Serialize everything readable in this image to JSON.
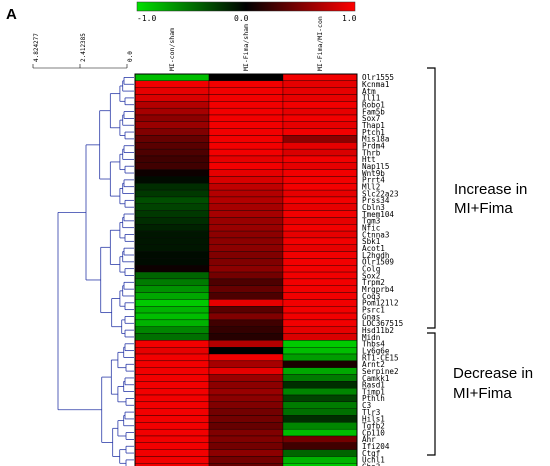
{
  "panel_label": "A",
  "color_scale": {
    "min_label": "-1.0",
    "mid_label": "0.0",
    "max_label": "1.0",
    "low_color": "#00e000",
    "mid_color": "#000000",
    "high_color": "#ff0000"
  },
  "dendrogram_scale": [
    "4.824277",
    "2.412385",
    "0.0"
  ],
  "groups": [
    {
      "line1": "Increase in",
      "line2": "MI+Fima"
    },
    {
      "line1": "Decrease in",
      "line2": "MI+Fima"
    }
  ],
  "chart_data": {
    "type": "heatmap",
    "title": "",
    "columns": [
      "MI-con/sham",
      "MI-Fima/sham",
      "MI-Fima/MI-con"
    ],
    "value_range": [
      -1.0,
      1.0
    ],
    "rows": [
      "Olr1555",
      "Kcnma1",
      "Atm",
      "Il11",
      "Robo1",
      "Fam5b",
      "Sox7",
      "Thap1",
      "Ptch1",
      "Mis18a",
      "Prdm4",
      "Thrb",
      "Htt",
      "Nap1l5",
      "Wnt9b",
      "Prrt4",
      "Mll2",
      "Slc22a23",
      "Prss34",
      "Cbln3",
      "Tmem104",
      "Tgm3",
      "Nfic",
      "Ctnna3",
      "Sbk1",
      "Acot1",
      "L2hgdh",
      "Olr1509",
      "Colq",
      "Sox2",
      "Trpm2",
      "Mrgprb4",
      "Coq3",
      "Pom121l2",
      "Psrc1",
      "Gnas",
      "LOC367515",
      "Hsd11b2",
      "Midn",
      "Thbs4",
      "Ly6g6e",
      "RT1-CE15",
      "Arnt2",
      "Serpine2",
      "Camkk1",
      "Rasd1",
      "Timp1",
      "Pthlh",
      "C3",
      "Tlr3",
      "Hils1",
      "Tgfb2",
      "Cp110",
      "Ahr",
      "Ifi204",
      "Ctgf",
      "Uchl1",
      "Gba3"
    ],
    "values": [
      [
        -0.85,
        0.0,
        0.95
      ],
      [
        0.95,
        0.95,
        0.9
      ],
      [
        0.9,
        0.95,
        0.9
      ],
      [
        0.85,
        0.95,
        0.9
      ],
      [
        0.7,
        0.95,
        0.95
      ],
      [
        0.65,
        0.95,
        0.9
      ],
      [
        0.55,
        0.95,
        0.95
      ],
      [
        0.6,
        0.95,
        0.9
      ],
      [
        0.5,
        0.95,
        0.95
      ],
      [
        0.4,
        0.95,
        0.55
      ],
      [
        0.35,
        0.95,
        0.9
      ],
      [
        0.3,
        0.95,
        0.85
      ],
      [
        0.25,
        0.9,
        0.95
      ],
      [
        0.25,
        0.95,
        0.9
      ],
      [
        0.05,
        0.9,
        0.95
      ],
      [
        -0.05,
        0.85,
        0.95
      ],
      [
        -0.2,
        0.75,
        0.95
      ],
      [
        -0.25,
        0.7,
        0.9
      ],
      [
        -0.35,
        0.7,
        0.95
      ],
      [
        -0.3,
        0.65,
        0.9
      ],
      [
        -0.25,
        0.65,
        0.95
      ],
      [
        -0.2,
        0.6,
        0.9
      ],
      [
        -0.15,
        0.6,
        0.95
      ],
      [
        -0.1,
        0.55,
        0.9
      ],
      [
        -0.1,
        0.55,
        0.95
      ],
      [
        -0.1,
        0.55,
        0.9
      ],
      [
        -0.05,
        0.5,
        0.95
      ],
      [
        -0.05,
        0.5,
        0.95
      ],
      [
        0.05,
        0.55,
        0.95
      ],
      [
        -0.45,
        0.45,
        0.95
      ],
      [
        -0.55,
        0.3,
        0.95
      ],
      [
        -0.65,
        0.4,
        0.95
      ],
      [
        -0.75,
        0.3,
        0.95
      ],
      [
        -0.9,
        0.9,
        0.95
      ],
      [
        -0.8,
        0.35,
        0.95
      ],
      [
        -0.85,
        0.5,
        0.95
      ],
      [
        -0.8,
        0.25,
        0.95
      ],
      [
        -0.6,
        0.2,
        0.9
      ],
      [
        -0.5,
        0.15,
        0.85
      ],
      [
        0.95,
        0.7,
        -0.9
      ],
      [
        0.9,
        0.0,
        -0.85
      ],
      [
        0.95,
        0.95,
        -0.7
      ],
      [
        0.95,
        0.65,
        0.1
      ],
      [
        0.95,
        0.9,
        -0.75
      ],
      [
        0.95,
        0.6,
        -0.55
      ],
      [
        0.95,
        0.55,
        -0.2
      ],
      [
        0.95,
        0.6,
        -0.6
      ],
      [
        0.95,
        0.55,
        -0.3
      ],
      [
        0.95,
        0.5,
        -0.55
      ],
      [
        0.95,
        0.45,
        -0.5
      ],
      [
        0.95,
        0.45,
        -0.2
      ],
      [
        0.95,
        0.4,
        -0.6
      ],
      [
        0.95,
        0.5,
        -0.85
      ],
      [
        0.95,
        0.5,
        0.45
      ],
      [
        0.95,
        0.45,
        0.25
      ],
      [
        0.95,
        0.55,
        -0.45
      ],
      [
        0.95,
        0.45,
        -0.8
      ],
      [
        0.95,
        0.4,
        -0.9
      ]
    ],
    "dendrogram": {
      "clusters": [
        "increase",
        "decrease"
      ],
      "split_after_row": 38
    }
  }
}
